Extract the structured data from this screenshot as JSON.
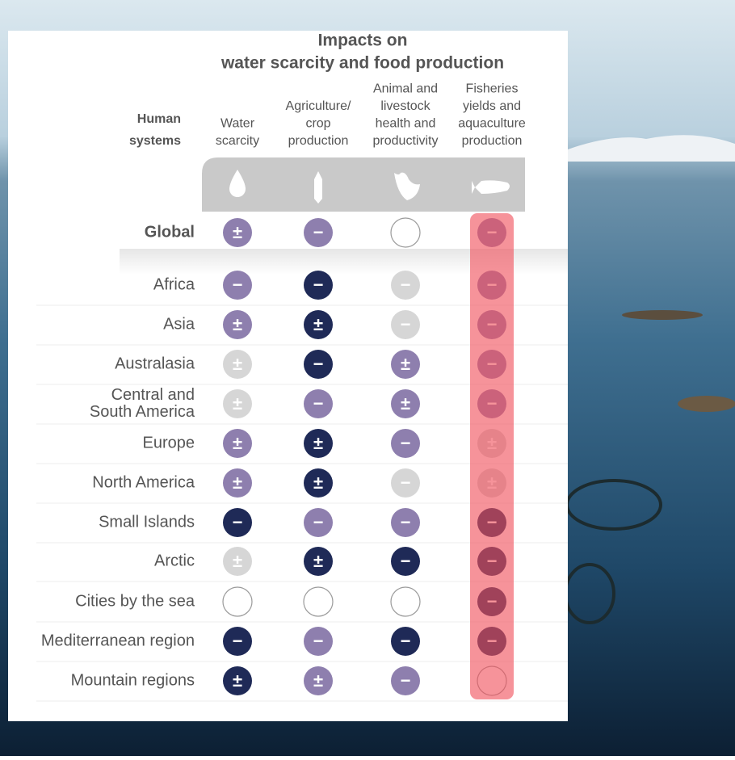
{
  "header": {
    "title": [
      "Impacts on",
      "water scarcity and food production"
    ]
  },
  "table": {
    "row_header": [
      "Human",
      "systems"
    ],
    "columns": [
      [
        "Water",
        "scarcity"
      ],
      [
        "Agriculture/",
        "crop",
        "production"
      ],
      [
        "Animal and",
        "livestock",
        "health and",
        "productivity"
      ],
      [
        "Fisheries",
        "yields and",
        "aquaculture",
        "production"
      ]
    ],
    "rows": [
      {
        "label": [
          "Global"
        ],
        "cells": [
          {
            "symbol": "±",
            "color": "#8e7fae"
          },
          {
            "symbol": "−",
            "color": "#8e7fae"
          },
          {
            "symbol": null,
            "color": null
          },
          {
            "symbol": "−",
            "color": "#8e7fae"
          }
        ]
      },
      {
        "label": [
          "Africa"
        ],
        "cells": [
          {
            "symbol": "−",
            "color": "#8e7fae"
          },
          {
            "symbol": "−",
            "color": "#1f2a57"
          },
          {
            "symbol": "−",
            "color": "#d6d6d6"
          },
          {
            "symbol": "−",
            "color": "#8e7fae"
          }
        ]
      },
      {
        "label": [
          "Asia"
        ],
        "cells": [
          {
            "symbol": "±",
            "color": "#8e7fae"
          },
          {
            "symbol": "±",
            "color": "#1f2a57"
          },
          {
            "symbol": "−",
            "color": "#d6d6d6"
          },
          {
            "symbol": "−",
            "color": "#8e7fae"
          }
        ]
      },
      {
        "label": [
          "Australasia"
        ],
        "cells": [
          {
            "symbol": "±",
            "color": "#d6d6d6"
          },
          {
            "symbol": "−",
            "color": "#1f2a57"
          },
          {
            "symbol": "±",
            "color": "#8e7fae"
          },
          {
            "symbol": "−",
            "color": "#8e7fae"
          }
        ]
      },
      {
        "label": [
          "Central and",
          "South America"
        ],
        "cells": [
          {
            "symbol": "±",
            "color": "#d6d6d6"
          },
          {
            "symbol": "−",
            "color": "#8e7fae"
          },
          {
            "symbol": "±",
            "color": "#8e7fae"
          },
          {
            "symbol": "−",
            "color": "#8e7fae"
          }
        ]
      },
      {
        "label": [
          "Europe"
        ],
        "cells": [
          {
            "symbol": "±",
            "color": "#8e7fae"
          },
          {
            "symbol": "±",
            "color": "#1f2a57"
          },
          {
            "symbol": "−",
            "color": "#8e7fae"
          },
          {
            "symbol": "±",
            "color": "#d6d6d6"
          }
        ]
      },
      {
        "label": [
          "North America"
        ],
        "cells": [
          {
            "symbol": "±",
            "color": "#8e7fae"
          },
          {
            "symbol": "±",
            "color": "#1f2a57"
          },
          {
            "symbol": "−",
            "color": "#d6d6d6"
          },
          {
            "symbol": "±",
            "color": "#d6d6d6"
          }
        ]
      },
      {
        "label": [
          "Small Islands"
        ],
        "cells": [
          {
            "symbol": "−",
            "color": "#1f2a57"
          },
          {
            "symbol": "−",
            "color": "#8e7fae"
          },
          {
            "symbol": "−",
            "color": "#8e7fae"
          },
          {
            "symbol": "−",
            "color": "#1f2a57"
          }
        ]
      },
      {
        "label": [
          "Arctic"
        ],
        "cells": [
          {
            "symbol": "±",
            "color": "#d6d6d6"
          },
          {
            "symbol": "±",
            "color": "#1f2a57"
          },
          {
            "symbol": "−",
            "color": "#1f2a57"
          },
          {
            "symbol": "−",
            "color": "#1f2a57"
          }
        ]
      },
      {
        "label": [
          "Cities by the sea"
        ],
        "cells": [
          {
            "symbol": null,
            "color": null
          },
          {
            "symbol": null,
            "color": null
          },
          {
            "symbol": null,
            "color": null
          },
          {
            "symbol": "−",
            "color": "#1f2a57"
          }
        ]
      },
      {
        "label": [
          "Mediterranean region"
        ],
        "cells": [
          {
            "symbol": "−",
            "color": "#1f2a57"
          },
          {
            "symbol": "−",
            "color": "#8e7fae"
          },
          {
            "symbol": "−",
            "color": "#1f2a57"
          },
          {
            "symbol": "−",
            "color": "#1f2a57"
          }
        ]
      },
      {
        "label": [
          "Mountain regions"
        ],
        "cells": [
          {
            "symbol": "±",
            "color": "#1f2a57"
          },
          {
            "symbol": "±",
            "color": "#8e7fae"
          },
          {
            "symbol": "−",
            "color": "#8e7fae"
          },
          {
            "symbol": null,
            "color": null
          }
        ]
      }
    ],
    "highlight_column": 3,
    "highlight_color": "#f0505c"
  }
}
